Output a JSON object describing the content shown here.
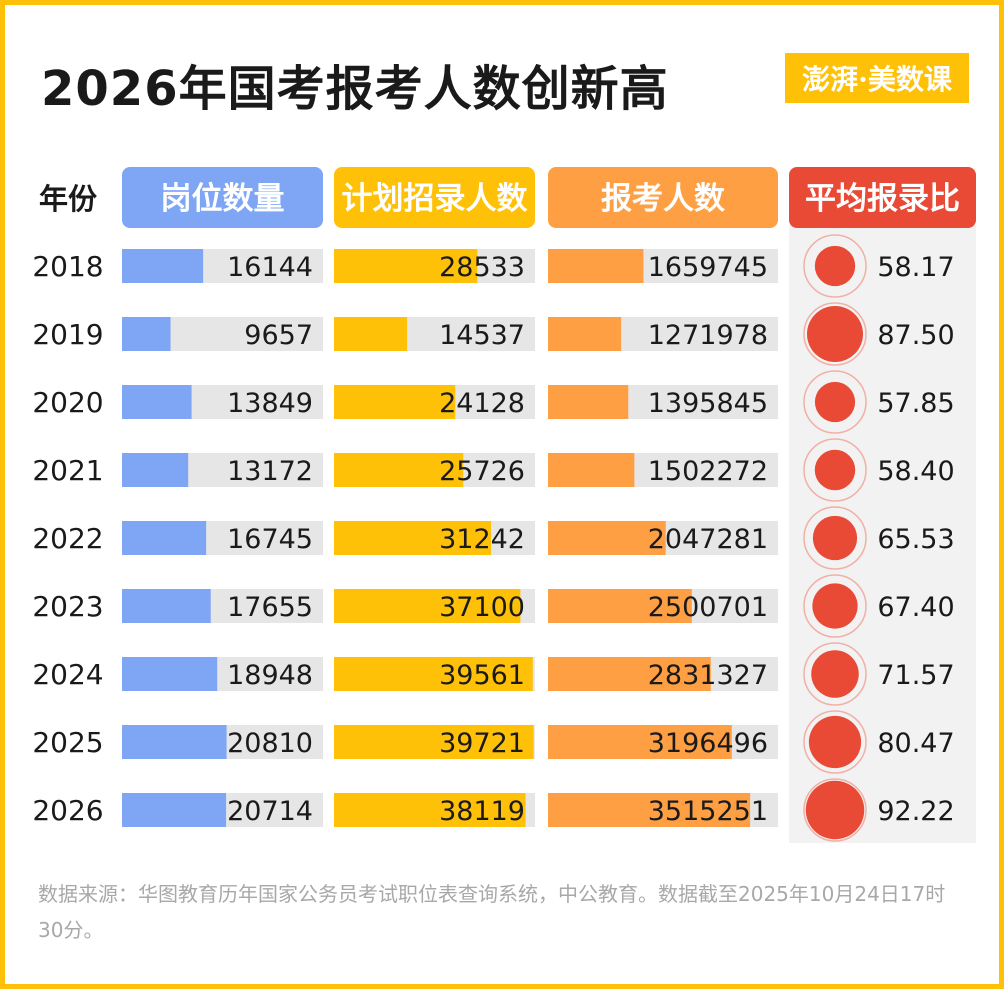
{
  "title": "2026年国考报考人数创新高",
  "brand": {
    "text": "澎湃·美数课"
  },
  "source": "数据来源：华图教育历年国家公务员考试职位表查询系统，中公教育。数据截至2025年10月24日17时30分。",
  "colors": {
    "border": "#FFC107",
    "posts": "#7EA6F4",
    "plan": "#FFC107",
    "applicants": "#FF9F43",
    "ratio": "#E84A35",
    "track": "#E6E6E6",
    "ratio_panel": "#F2F2F2"
  },
  "chart_data": {
    "type": "table",
    "row_header": "年份",
    "categories": [
      "2018",
      "2019",
      "2020",
      "2021",
      "2022",
      "2023",
      "2024",
      "2025",
      "2026"
    ],
    "series": [
      {
        "name": "岗位数量",
        "values": [
          16144,
          9657,
          13849,
          13172,
          16745,
          17655,
          18948,
          20810,
          20714
        ]
      },
      {
        "name": "计划招录人数",
        "values": [
          28533,
          14537,
          24128,
          25726,
          31242,
          37100,
          39561,
          39721,
          38119
        ]
      },
      {
        "name": "报考人数",
        "values": [
          1659745,
          1271978,
          1395845,
          1502272,
          2047281,
          2500701,
          2831327,
          3196496,
          3515251
        ]
      },
      {
        "name": "平均报录比",
        "values": [
          "58.17",
          "87.50",
          "57.85",
          "58.40",
          "65.53",
          "67.40",
          "71.57",
          "80.47",
          "92.22"
        ]
      }
    ]
  }
}
